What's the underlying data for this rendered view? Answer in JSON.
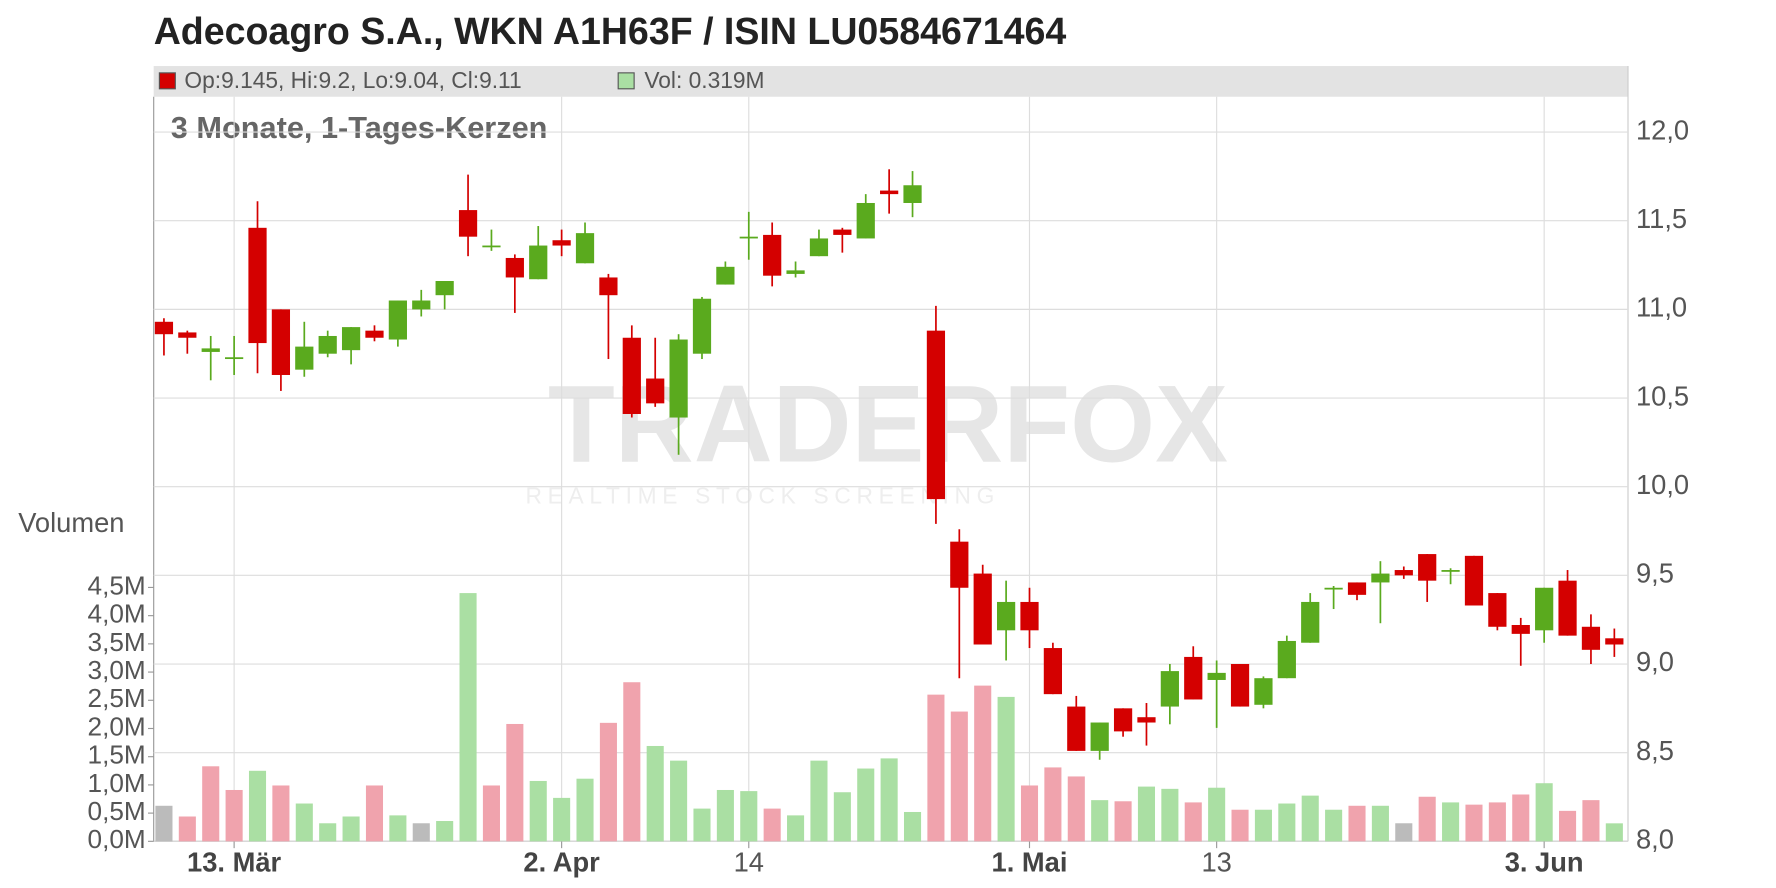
{
  "chart_data": {
    "type": "candlestick",
    "title": "Adecoagro S.A., WKN A1H63F / ISIN LU0584671464",
    "subtitle": "3 Monate, 1-Tages-Kerzen",
    "legend_price": "Op:9.145, Hi:9.2, Lo:9.04, Cl:9.11",
    "legend_volume": "Vol: 0.319M",
    "volume_label": "Volumen",
    "watermark": "TRADERFOX",
    "watermark_sub": "REALTIME STOCK SCREENING",
    "categories": [
      null,
      null,
      null,
      "13. Mär",
      null,
      null,
      null,
      null,
      null,
      null,
      null,
      null,
      null,
      null,
      null,
      null,
      null,
      "2. Apr",
      null,
      null,
      null,
      null,
      null,
      null,
      null,
      "14",
      null,
      null,
      null,
      null,
      null,
      null,
      null,
      null,
      null,
      null,
      null,
      "1. Mai",
      null,
      null,
      null,
      null,
      null,
      null,
      null,
      "13",
      null,
      null,
      null,
      null,
      null,
      null,
      null,
      null,
      null,
      null,
      null,
      null,
      null,
      "3. Jun",
      null,
      null,
      null
    ],
    "open": [
      10.93,
      10.87,
      10.76,
      10.72,
      11.46,
      11.0,
      10.66,
      10.75,
      10.77,
      10.88,
      10.83,
      11.0,
      11.08,
      11.56,
      11.35,
      11.29,
      11.17,
      11.39,
      11.26,
      11.18,
      10.84,
      10.61,
      10.39,
      10.75,
      11.14,
      11.4,
      11.42,
      11.2,
      11.3,
      11.45,
      11.4,
      11.67,
      11.6,
      10.88,
      9.69,
      9.51,
      9.19,
      9.35,
      9.09,
      8.76,
      8.51,
      8.75,
      8.7,
      8.76,
      9.04,
      8.91,
      9.0,
      8.77,
      8.92,
      9.12,
      9.42,
      9.46,
      9.46,
      9.53,
      9.62,
      9.52,
      9.61,
      9.4,
      9.22,
      9.19,
      9.47,
      9.21,
      9.145
    ],
    "high": [
      10.95,
      10.88,
      10.85,
      10.85,
      11.61,
      11.0,
      10.93,
      10.88,
      10.9,
      10.91,
      11.05,
      11.11,
      11.16,
      11.76,
      11.45,
      11.31,
      11.47,
      11.45,
      11.49,
      11.2,
      10.91,
      10.84,
      10.86,
      11.07,
      11.27,
      11.55,
      11.49,
      11.27,
      11.45,
      11.46,
      11.65,
      11.79,
      11.78,
      11.02,
      9.76,
      9.56,
      9.47,
      9.43,
      9.12,
      8.82,
      8.67,
      8.75,
      8.78,
      9.0,
      9.1,
      9.02,
      9.0,
      8.93,
      9.16,
      9.4,
      9.44,
      9.46,
      9.58,
      9.55,
      9.62,
      9.54,
      9.61,
      9.4,
      9.26,
      9.43,
      9.53,
      9.28,
      9.2
    ],
    "low": [
      10.74,
      10.75,
      10.6,
      10.63,
      10.64,
      10.54,
      10.62,
      10.73,
      10.69,
      10.82,
      10.79,
      10.96,
      11.0,
      11.3,
      11.33,
      10.98,
      11.17,
      11.3,
      11.26,
      10.72,
      10.39,
      10.45,
      10.18,
      10.72,
      11.14,
      11.28,
      11.13,
      11.18,
      11.3,
      11.32,
      11.4,
      11.54,
      11.52,
      9.79,
      8.92,
      9.11,
      9.02,
      9.09,
      8.83,
      8.51,
      8.46,
      8.59,
      8.54,
      8.66,
      8.8,
      8.64,
      8.76,
      8.75,
      8.92,
      9.12,
      9.31,
      9.36,
      9.23,
      9.48,
      9.35,
      9.45,
      9.33,
      9.19,
      8.99,
      9.12,
      9.16,
      9.0,
      9.04
    ],
    "close": [
      10.86,
      10.84,
      10.78,
      10.73,
      10.81,
      10.63,
      10.79,
      10.85,
      10.9,
      10.84,
      11.05,
      11.05,
      11.16,
      11.41,
      11.36,
      11.18,
      11.36,
      11.36,
      11.43,
      11.08,
      10.41,
      10.47,
      10.83,
      11.06,
      11.24,
      11.41,
      11.19,
      11.22,
      11.4,
      11.42,
      11.6,
      11.65,
      11.7,
      9.93,
      9.43,
      9.11,
      9.35,
      9.19,
      8.83,
      8.51,
      8.67,
      8.62,
      8.67,
      8.96,
      8.8,
      8.95,
      8.76,
      8.92,
      9.13,
      9.35,
      9.43,
      9.39,
      9.51,
      9.5,
      9.47,
      9.53,
      9.33,
      9.21,
      9.17,
      9.43,
      9.16,
      9.08,
      9.11
    ],
    "volume": [
      0.63,
      0.44,
      1.33,
      0.91,
      1.25,
      0.99,
      0.67,
      0.32,
      0.44,
      0.99,
      0.46,
      0.32,
      0.36,
      4.4,
      0.99,
      2.08,
      1.07,
      0.77,
      1.11,
      2.1,
      2.82,
      1.69,
      1.43,
      0.58,
      0.91,
      0.89,
      0.58,
      0.46,
      1.43,
      0.87,
      1.29,
      1.47,
      0.52,
      2.6,
      2.3,
      2.76,
      2.56,
      0.99,
      1.31,
      1.15,
      0.73,
      0.71,
      0.97,
      0.93,
      0.69,
      0.95,
      0.56,
      0.56,
      0.67,
      0.81,
      0.56,
      0.63,
      0.63,
      0.32,
      0.79,
      0.69,
      0.65,
      0.69,
      0.83,
      1.03,
      0.54,
      0.73,
      0.319
    ],
    "volume_colors": [
      "#bbbbbb",
      "#f0a3ad",
      "#f0a3ad",
      "#f0a3ad",
      "#aadfa3",
      "#f0a3ad",
      "#aadfa3",
      "#aadfa3",
      "#aadfa3",
      "#f0a3ad",
      "#aadfa3",
      "#bbbbbb",
      "#aadfa3",
      "#aadfa3",
      "#f0a3ad",
      "#f0a3ad",
      "#aadfa3",
      "#aadfa3",
      "#aadfa3",
      "#f0a3ad",
      "#f0a3ad",
      "#aadfa3",
      "#aadfa3",
      "#aadfa3",
      "#aadfa3",
      "#aadfa3",
      "#f0a3ad",
      "#aadfa3",
      "#aadfa3",
      "#aadfa3",
      "#aadfa3",
      "#aadfa3",
      "#aadfa3",
      "#f0a3ad",
      "#f0a3ad",
      "#f0a3ad",
      "#aadfa3",
      "#f0a3ad",
      "#f0a3ad",
      "#f0a3ad",
      "#aadfa3",
      "#f0a3ad",
      "#aadfa3",
      "#aadfa3",
      "#f0a3ad",
      "#aadfa3",
      "#f0a3ad",
      "#aadfa3",
      "#aadfa3",
      "#aadfa3",
      "#aadfa3",
      "#f0a3ad",
      "#aadfa3",
      "#bbbbbb",
      "#f0a3ad",
      "#aadfa3",
      "#f0a3ad",
      "#f0a3ad",
      "#f0a3ad",
      "#aadfa3",
      "#f0a3ad",
      "#f0a3ad",
      "#aadfa3"
    ],
    "up_color": "#5aaa1e",
    "down_color": "#d40000",
    "ylim": [
      8,
      12
    ],
    "yticks": [
      {
        "value": 8,
        "label": "8,0"
      },
      {
        "value": 8.5,
        "label": "8,5"
      },
      {
        "value": 9,
        "label": "9,0"
      },
      {
        "value": 9.5,
        "label": "9,5"
      },
      {
        "value": 10,
        "label": "10,0"
      },
      {
        "value": 10.5,
        "label": "10,5"
      },
      {
        "value": 11,
        "label": "11,0"
      },
      {
        "value": 11.5,
        "label": "11,5"
      },
      {
        "value": 12,
        "label": "12,0"
      }
    ],
    "y2lim": [
      0,
      4.5
    ],
    "y2ticks": [
      {
        "value": 0,
        "label": "0,0M"
      },
      {
        "value": 0.5,
        "label": "0,5M"
      },
      {
        "value": 1,
        "label": "1,0M"
      },
      {
        "value": 1.5,
        "label": "1,5M"
      },
      {
        "value": 2,
        "label": "2,0M"
      },
      {
        "value": 2.5,
        "label": "2,5M"
      },
      {
        "value": 3,
        "label": "3,0M"
      },
      {
        "value": 3.5,
        "label": "3,5M"
      },
      {
        "value": 4,
        "label": "4,0M"
      },
      {
        "value": 4.5,
        "label": "4,5M"
      }
    ],
    "grid": true
  }
}
